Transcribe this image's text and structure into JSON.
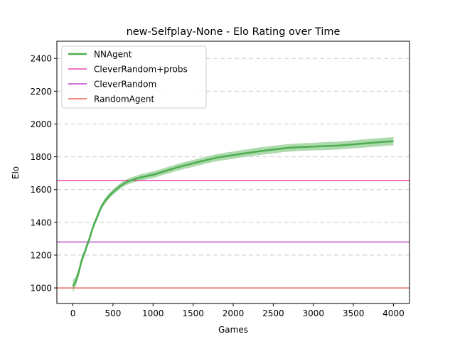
{
  "chart_data": {
    "type": "line",
    "title": "new-Selfplay-None - Elo Rating over Time",
    "xlabel": "Games",
    "ylabel": "Elo",
    "xlim": [
      -200,
      4200
    ],
    "ylim": [
      905,
      2505
    ],
    "xticks": [
      0,
      500,
      1000,
      1500,
      2000,
      2500,
      3000,
      3500,
      4000
    ],
    "yticks": [
      1000,
      1200,
      1400,
      1600,
      1800,
      2000,
      2200,
      2400
    ],
    "grid": {
      "y": true,
      "x": false,
      "style": "dashed"
    },
    "legend_position": "upper-left",
    "series": [
      {
        "name": "NNAgent",
        "kind": "line-with-band",
        "color": "#4cae4f",
        "band_color": "#9fd49f",
        "x": [
          0,
          25,
          50,
          75,
          100,
          125,
          150,
          175,
          200,
          225,
          250,
          275,
          300,
          325,
          350,
          375,
          400,
          450,
          500,
          550,
          600,
          650,
          700,
          750,
          800,
          850,
          900,
          950,
          1000,
          1100,
          1200,
          1300,
          1400,
          1500,
          1600,
          1700,
          1800,
          1900,
          2000,
          2100,
          2200,
          2300,
          2400,
          2500,
          2600,
          2700,
          2800,
          2900,
          3000,
          3100,
          3200,
          3300,
          3400,
          3500,
          3600,
          3700,
          3800,
          3900,
          4000
        ],
        "y": [
          1010,
          1030,
          1060,
          1100,
          1150,
          1190,
          1220,
          1260,
          1290,
          1330,
          1370,
          1400,
          1430,
          1460,
          1490,
          1510,
          1530,
          1560,
          1585,
          1605,
          1625,
          1640,
          1652,
          1660,
          1668,
          1675,
          1680,
          1686,
          1690,
          1705,
          1720,
          1735,
          1748,
          1760,
          1772,
          1784,
          1795,
          1803,
          1810,
          1818,
          1825,
          1832,
          1838,
          1844,
          1850,
          1855,
          1858,
          1860,
          1862,
          1864,
          1866,
          1868,
          1872,
          1876,
          1880,
          1884,
          1888,
          1892,
          1895
        ],
        "band_halfwidth": [
          40,
          30,
          28,
          25,
          25,
          22,
          20,
          20,
          20,
          18,
          18,
          18,
          18,
          17,
          17,
          17,
          17,
          17,
          17,
          17,
          17,
          17,
          18,
          18,
          18,
          19,
          19,
          20,
          20,
          20,
          20,
          20,
          21,
          21,
          21,
          21,
          22,
          22,
          22,
          22,
          22,
          23,
          23,
          23,
          23,
          23,
          23,
          23,
          23,
          24,
          24,
          24,
          24,
          24,
          25,
          25,
          25,
          25,
          25
        ]
      },
      {
        "name": "CleverRandom+probs",
        "kind": "hline",
        "value": 1655,
        "color": "#e0249a"
      },
      {
        "name": "CleverRandom",
        "kind": "hline",
        "value": 1280,
        "color": "#b024c0"
      },
      {
        "name": "RandomAgent",
        "kind": "hline",
        "value": 1000,
        "color": "#e74c3c"
      }
    ]
  }
}
